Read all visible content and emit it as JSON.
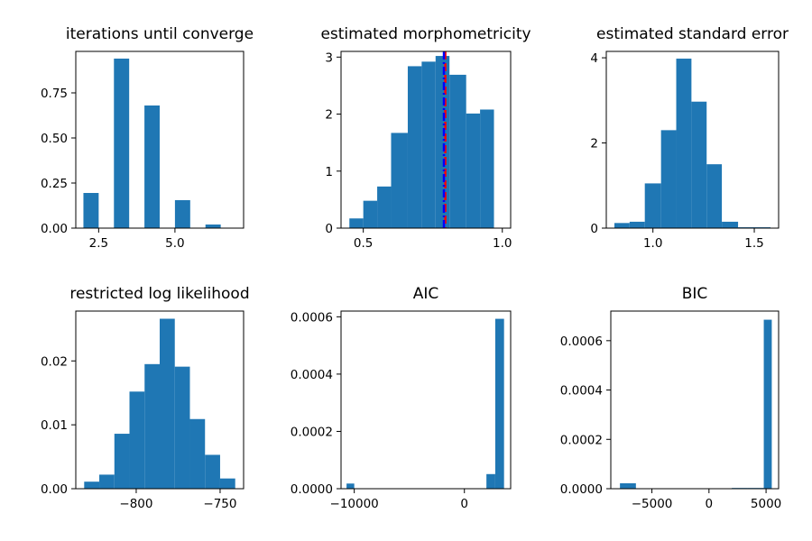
{
  "chart_data": [
    {
      "type": "bar",
      "title": "iterations until converge",
      "xlabel": "",
      "ylabel": "",
      "xlim": [
        1.75,
        7.25
      ],
      "ylim": [
        0,
        0.98
      ],
      "xticks": [
        2.5,
        5.0
      ],
      "xtick_labels": [
        "2.5",
        "5.0"
      ],
      "yticks": [
        0,
        0.25,
        0.5,
        0.75
      ],
      "ytick_labels": [
        "0.00",
        "0.25",
        "0.50",
        "0.75"
      ],
      "bins": [
        [
          2.0,
          2.5
        ],
        [
          3.0,
          3.5
        ],
        [
          4.0,
          4.5
        ],
        [
          5.0,
          5.5
        ],
        [
          6.0,
          6.5
        ]
      ],
      "values": [
        0.195,
        0.94,
        0.68,
        0.155,
        0.02
      ],
      "vlines": []
    },
    {
      "type": "bar",
      "title": "estimated morphometricity",
      "xlabel": "",
      "ylabel": "",
      "xlim": [
        0.42,
        1.03
      ],
      "ylim": [
        0,
        3.1
      ],
      "xticks": [
        0.5,
        1.0
      ],
      "xtick_labels": [
        "0.5",
        "1.0"
      ],
      "yticks": [
        0,
        1,
        2,
        3
      ],
      "ytick_labels": [
        "0",
        "1",
        "2",
        "3"
      ],
      "bins": [
        [
          0.45,
          0.5
        ],
        [
          0.5,
          0.55
        ],
        [
          0.55,
          0.6
        ],
        [
          0.6,
          0.66
        ],
        [
          0.66,
          0.71
        ],
        [
          0.71,
          0.76
        ],
        [
          0.76,
          0.81
        ],
        [
          0.81,
          0.87
        ],
        [
          0.87,
          0.92
        ],
        [
          0.92,
          0.97
        ]
      ],
      "values": [
        0.17,
        0.48,
        0.73,
        1.67,
        2.84,
        2.92,
        3.02,
        2.69,
        2.01,
        2.08
      ],
      "vlines": [
        {
          "x": 0.795,
          "color": "#ff0000",
          "style": "dashed"
        },
        {
          "x": 0.79,
          "color": "#0000ff",
          "style": "dashdot"
        }
      ]
    },
    {
      "type": "bar",
      "title": "estimated standard error",
      "xlabel": "",
      "ylabel": "",
      "xlim": [
        0.77,
        1.62
      ],
      "ylim": [
        0,
        4.15
      ],
      "xticks": [
        1.0,
        1.5
      ],
      "xtick_labels": [
        "1.0",
        "1.5"
      ],
      "yticks": [
        0,
        2,
        4
      ],
      "ytick_labels": [
        "0",
        "2",
        "4"
      ],
      "bins": [
        [
          0.81,
          0.885
        ],
        [
          0.885,
          0.96
        ],
        [
          0.96,
          1.04
        ],
        [
          1.04,
          1.115
        ],
        [
          1.115,
          1.19
        ],
        [
          1.19,
          1.265
        ],
        [
          1.265,
          1.34
        ],
        [
          1.34,
          1.42
        ],
        [
          1.42,
          1.5
        ],
        [
          1.5,
          1.58
        ]
      ],
      "values": [
        0.12,
        0.15,
        1.05,
        2.3,
        3.98,
        2.97,
        1.5,
        0.15,
        0.02,
        0.02
      ],
      "vlines": []
    },
    {
      "type": "bar",
      "title": "restricted log likelihood",
      "xlabel": "",
      "ylabel": "",
      "xlim": [
        -836,
        -736
      ],
      "ylim": [
        0,
        0.0278
      ],
      "xticks": [
        -800,
        -750
      ],
      "xtick_labels": [
        "−800",
        "−750"
      ],
      "yticks": [
        0,
        0.01,
        0.02
      ],
      "ytick_labels": [
        "0.00",
        "0.01",
        "0.02"
      ],
      "bins": [
        [
          -831,
          -822
        ],
        [
          -822,
          -813
        ],
        [
          -813,
          -804
        ],
        [
          -804,
          -795
        ],
        [
          -795,
          -786
        ],
        [
          -786,
          -777
        ],
        [
          -777,
          -768
        ],
        [
          -768,
          -759
        ],
        [
          -759,
          -750
        ],
        [
          -750,
          -741
        ]
      ],
      "values": [
        0.0011,
        0.0022,
        0.0086,
        0.0152,
        0.0195,
        0.0266,
        0.0191,
        0.0109,
        0.0053,
        0.0016
      ],
      "vlines": []
    },
    {
      "type": "bar",
      "title": "AIC",
      "xlabel": "",
      "ylabel": "",
      "xlim": [
        -11200,
        4200
      ],
      "ylim": [
        0,
        0.00062
      ],
      "xticks": [
        -10000,
        0
      ],
      "xtick_labels": [
        "−10000",
        "0"
      ],
      "yticks": [
        0,
        0.0002,
        0.0004,
        0.0006
      ],
      "ytick_labels": [
        "0.0000",
        "0.0002",
        "0.0004",
        "0.0006"
      ],
      "bins": [
        [
          -10700,
          -10000
        ],
        [
          -10000,
          -9300
        ],
        [
          -9300,
          -8600
        ],
        [
          -8600,
          -7900
        ],
        [
          -7900,
          -7200
        ],
        [
          -7200,
          -6500
        ],
        [
          -6500,
          -5800
        ],
        [
          -5800,
          -5100
        ],
        [
          -5100,
          -4400
        ],
        [
          -4400,
          -3700
        ],
        [
          -3700,
          -3000
        ],
        [
          -3000,
          -2300
        ],
        [
          -2300,
          -1600
        ],
        [
          -1600,
          -900
        ],
        [
          -900,
          -200
        ],
        [
          -200,
          500
        ],
        [
          500,
          1200
        ],
        [
          1200,
          2000
        ],
        [
          2000,
          2800
        ],
        [
          2800,
          3600
        ]
      ],
      "values": [
        1.8e-05,
        0,
        0,
        0,
        0,
        0,
        0,
        0,
        0,
        0,
        0,
        0,
        0,
        0,
        0,
        0,
        0,
        0,
        5.1e-05,
        0.000593
      ],
      "vlines": []
    },
    {
      "type": "bar",
      "title": "BIC",
      "xlabel": "",
      "ylabel": "",
      "xlim": [
        -8600,
        6100
      ],
      "ylim": [
        0,
        0.00072
      ],
      "xticks": [
        -5000,
        0,
        5000
      ],
      "xtick_labels": [
        "−5000",
        "0",
        "5000"
      ],
      "yticks": [
        0,
        0.0002,
        0.0004,
        0.0006
      ],
      "ytick_labels": [
        "0.0000",
        "0.0002",
        "0.0004",
        "0.0006"
      ],
      "bins": [
        [
          -7800,
          -6400
        ],
        [
          -6400,
          -5000
        ],
        [
          -5000,
          -3600
        ],
        [
          -3600,
          -2200
        ],
        [
          -2200,
          -800
        ],
        [
          -800,
          600
        ],
        [
          600,
          2000
        ],
        [
          2000,
          3400
        ],
        [
          3400,
          4800
        ],
        [
          4800,
          5500
        ]
      ],
      "values": [
        2.2e-05,
        0,
        0,
        0,
        0,
        0,
        0,
        3e-06,
        3e-06,
        0.000685
      ],
      "vlines": []
    }
  ],
  "style": {
    "bar_color": "#1f77b4",
    "axis_color": "#000000"
  }
}
